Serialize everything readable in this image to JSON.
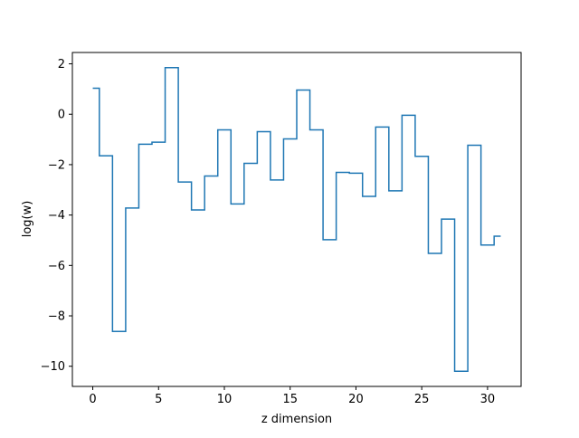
{
  "chart_data": {
    "type": "line",
    "drawstyle": "steps-mid",
    "title": "",
    "xlabel": "z dimension",
    "ylabel": "log(w)",
    "xlim": [
      -1.55,
      32.55
    ],
    "ylim": [
      -10.8,
      2.45
    ],
    "xticks": [
      0,
      5,
      10,
      15,
      20,
      25,
      30
    ],
    "yticks": [
      -10,
      -8,
      -6,
      -4,
      -2,
      0,
      2
    ],
    "grid": false,
    "legend": "none",
    "series": [
      {
        "color": "#1f77b4",
        "x": [
          0,
          1,
          2,
          3,
          4,
          5,
          6,
          7,
          8,
          9,
          10,
          11,
          12,
          13,
          14,
          15,
          16,
          17,
          18,
          19,
          20,
          21,
          22,
          23,
          24,
          25,
          26,
          27,
          28,
          29,
          30,
          31
        ],
        "y": [
          1.03,
          -1.65,
          -8.62,
          -3.72,
          -1.19,
          -1.11,
          1.85,
          -2.69,
          -3.8,
          -2.45,
          -0.62,
          -3.56,
          -1.95,
          -0.69,
          -2.61,
          -0.98,
          0.96,
          -0.62,
          -4.98,
          -2.31,
          -2.34,
          -3.26,
          -0.51,
          -3.04,
          -0.04,
          -1.67,
          -5.52,
          -4.16,
          -10.2,
          -1.23,
          -5.19,
          -4.84
        ]
      }
    ]
  }
}
